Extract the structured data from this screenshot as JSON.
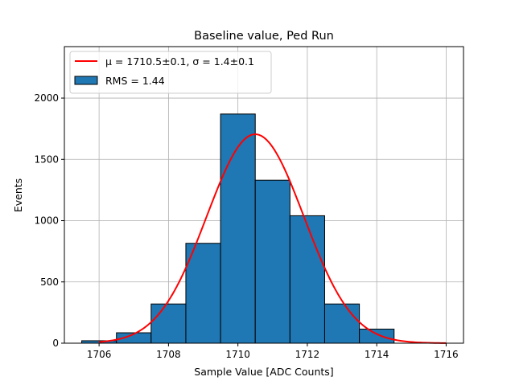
{
  "chart_data": {
    "type": "histogram",
    "title": "Baseline value, Ped Run",
    "xlabel": "Sample Value [ADC Counts]",
    "ylabel": "Events",
    "xlim": [
      1705,
      1716.5
    ],
    "ylim": [
      0,
      2420
    ],
    "xticks": [
      1706,
      1708,
      1710,
      1712,
      1714,
      1716
    ],
    "yticks": [
      0,
      500,
      1000,
      1500,
      2000
    ],
    "grid": true,
    "legend_position": "top-left",
    "colors": {
      "bars": "#1f77b4",
      "fit": "#ff0000",
      "edge": "#000000",
      "grid": "#b0b0b0"
    },
    "histogram": {
      "name": "RMS = 1.44",
      "bins": [
        {
          "x0": 1705.5,
          "x1": 1706.5,
          "count": 20
        },
        {
          "x0": 1706.5,
          "x1": 1707.5,
          "count": 85
        },
        {
          "x0": 1707.5,
          "x1": 1708.5,
          "count": 320
        },
        {
          "x0": 1708.5,
          "x1": 1709.5,
          "count": 815
        },
        {
          "x0": 1709.5,
          "x1": 1710.5,
          "count": 1870
        },
        {
          "x0": 1710.5,
          "x1": 1711.5,
          "count": 1330
        },
        {
          "x0": 1711.5,
          "x1": 1712.5,
          "count": 1040
        },
        {
          "x0": 1712.5,
          "x1": 1713.5,
          "count": 320
        },
        {
          "x0": 1713.5,
          "x1": 1714.5,
          "count": 115
        }
      ]
    },
    "fit": {
      "name": "μ = 1710.5±0.1, σ = 1.4±0.1",
      "mu": 1710.5,
      "sigma": 1.4,
      "amplitude": 1705,
      "x_range": [
        1706,
        1716
      ]
    }
  }
}
